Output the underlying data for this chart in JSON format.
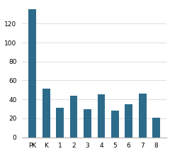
{
  "categories": [
    "PK",
    "K",
    "1",
    "2",
    "3",
    "4",
    "5",
    "6",
    "7",
    "8"
  ],
  "values": [
    135,
    51,
    31,
    44,
    30,
    45,
    28,
    35,
    46,
    21
  ],
  "bar_color": "#2d6b8a",
  "ylim": [
    0,
    140
  ],
  "yticks": [
    0,
    20,
    40,
    60,
    80,
    100,
    120
  ],
  "background_color": "#ffffff",
  "tick_fontsize": 6.5,
  "bar_width": 0.55
}
